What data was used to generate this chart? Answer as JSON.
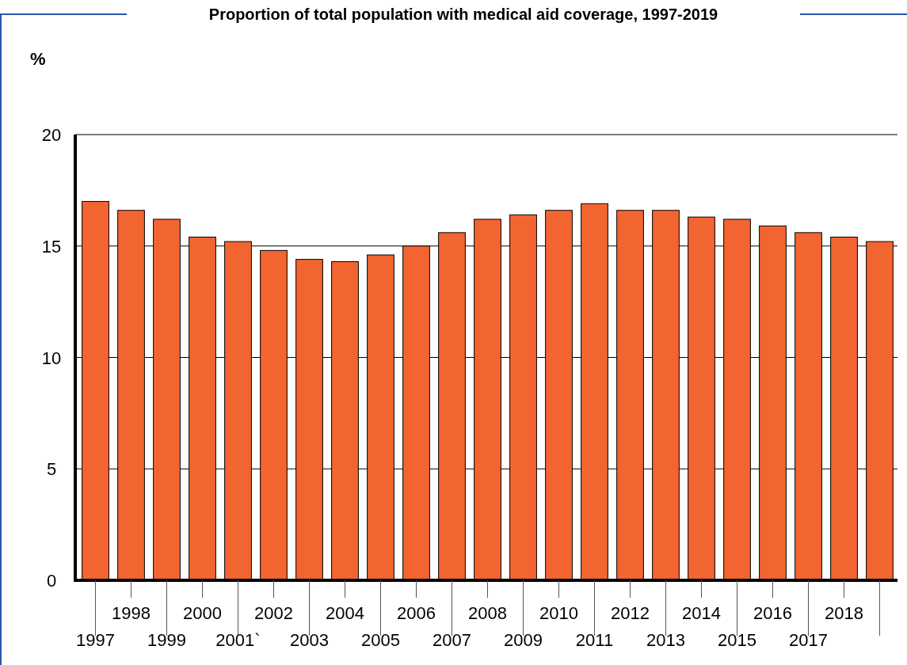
{
  "chart_data": {
    "type": "bar",
    "title": "Proportion of total population with medical aid coverage, 1997-2019",
    "ylabel": "%",
    "categories": [
      "1997",
      "1998",
      "1999",
      "2000",
      "2001`",
      "2002",
      "2003",
      "2004",
      "2005",
      "2006",
      "2007",
      "2008",
      "2009",
      "2010",
      "2011",
      "2012",
      "2013",
      "2014",
      "2015",
      "2016",
      "2017",
      "2018",
      null
    ],
    "values": [
      17.0,
      16.6,
      16.2,
      15.4,
      15.2,
      14.8,
      14.4,
      14.3,
      14.6,
      15.0,
      15.6,
      16.2,
      16.4,
      16.6,
      16.9,
      16.6,
      16.6,
      16.3,
      16.2,
      15.9,
      15.6,
      15.4,
      15.2
    ],
    "color": "#f26531",
    "ylim": [
      0,
      20
    ],
    "yticks": [
      0,
      5,
      10,
      15,
      20
    ],
    "grid": "y"
  }
}
